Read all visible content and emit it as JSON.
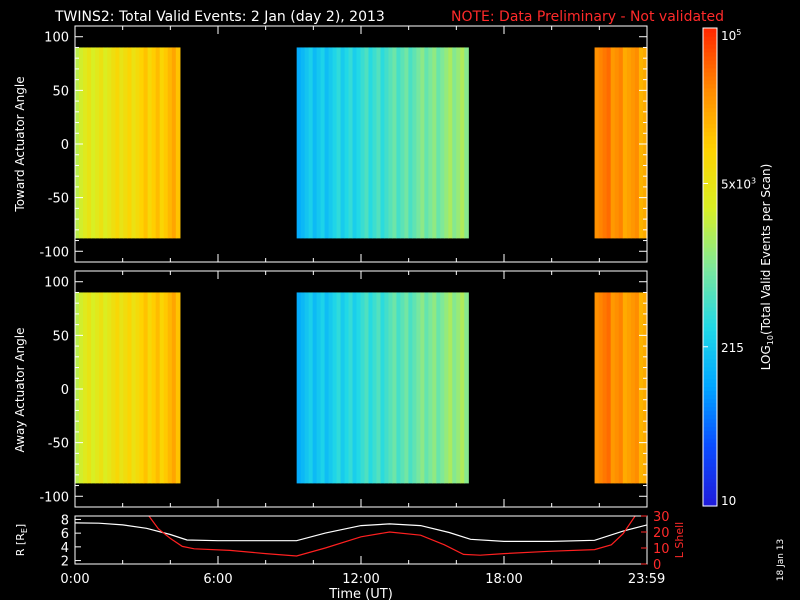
{
  "title": "TWINS2: Total Valid Events:  2 Jan (day   2), 2013",
  "note": "NOTE: Data Preliminary - Not validated",
  "footer_date": "18 Jan 13",
  "colorbar": {
    "label": "LOG10(Total Valid Events per Scan)",
    "label_prefix": "LOG",
    "label_sub": "10",
    "label_suffix": "(Total Valid Events per Scan)",
    "ticks": [
      {
        "value": 10,
        "text": "10",
        "base": "10",
        "exp": ""
      },
      {
        "value": 215,
        "text": "215",
        "base": "215",
        "exp": ""
      },
      {
        "value": 5000,
        "text": "5x10^3",
        "base": "5x10",
        "exp": "3"
      },
      {
        "value": 100000,
        "text": "10^5",
        "base": "10",
        "exp": "5"
      }
    ],
    "range": [
      10,
      100000
    ],
    "scale": "log",
    "colors": [
      "#1f1cdc",
      "#0a4dff",
      "#00a6ff",
      "#21d9e6",
      "#7ee89a",
      "#d8ef24",
      "#ffd200",
      "#ff8a00",
      "#ff2a00"
    ]
  },
  "chart_data": [
    {
      "type": "heatmap",
      "panel": "toward",
      "ylabel": "Toward Actuator Angle",
      "ylim": [
        -110,
        110
      ],
      "yticks": [
        -100,
        -50,
        0,
        50,
        100
      ],
      "xlim": [
        0,
        24
      ],
      "angle_range": [
        -88,
        90
      ],
      "segments": [
        {
          "x_start": 0.0,
          "x_end": 4.4,
          "level_start": 0.62,
          "level_end": 0.8
        },
        {
          "x_start": 9.3,
          "x_end": 16.5,
          "level_start": 0.3,
          "level_end": 0.55
        },
        {
          "x_start": 21.8,
          "x_end": 24.0,
          "level_start": 0.9,
          "level_end": 0.82
        }
      ]
    },
    {
      "type": "heatmap",
      "panel": "away",
      "ylabel": "Away Actuator Angle",
      "ylim": [
        -110,
        110
      ],
      "yticks": [
        -100,
        -50,
        0,
        50,
        100
      ],
      "xlim": [
        0,
        24
      ],
      "angle_range": [
        -88,
        90
      ],
      "segments": [
        {
          "x_start": 0.0,
          "x_end": 4.4,
          "level_start": 0.62,
          "level_end": 0.8
        },
        {
          "x_start": 9.3,
          "x_end": 16.5,
          "level_start": 0.3,
          "level_end": 0.55
        },
        {
          "x_start": 21.8,
          "x_end": 24.0,
          "level_start": 0.9,
          "level_end": 0.82
        }
      ]
    },
    {
      "type": "line",
      "panel": "orbit",
      "ylabel_left": "R [RE]",
      "ylabel_left_main": "R [R",
      "ylabel_left_sub": "E",
      "ylabel_left_end": "]",
      "ylabel_right": "L Shell",
      "xlabel": "Time (UT)",
      "xticks": [
        0,
        6,
        12,
        18,
        23.983
      ],
      "xtick_labels": [
        "0:00",
        "6:00",
        "12:00",
        "18:00",
        "23:59"
      ],
      "xlim": [
        0,
        24
      ],
      "ylim_left": [
        1.5,
        8.5
      ],
      "yticks_left": [
        2,
        4,
        6,
        8
      ],
      "ylim_right": [
        0,
        30
      ],
      "yticks_right": [
        0,
        10,
        20,
        30
      ],
      "series": [
        {
          "axis": "left",
          "color": "#ffffff",
          "x": [
            0,
            1,
            2,
            3,
            4,
            4.7,
            6,
            8,
            9.3,
            10.5,
            12,
            13.2,
            14.5,
            15.7,
            16.6,
            18,
            20,
            21.8,
            23,
            24
          ],
          "y": [
            7.5,
            7.45,
            7.2,
            6.7,
            5.8,
            5.0,
            4.9,
            4.9,
            4.9,
            6.0,
            7.1,
            7.35,
            7.1,
            6.1,
            5.1,
            4.8,
            4.8,
            4.95,
            6.3,
            7.2
          ]
        },
        {
          "axis": "right",
          "color": "#ff2020",
          "x": [
            3.1,
            3.5,
            4.0,
            4.5,
            5.0,
            6.5,
            8.0,
            9.3,
            10.5,
            12.0,
            13.2,
            14.5,
            15.5,
            16.3,
            17.0,
            18.0,
            20.0,
            21.8,
            22.5,
            23.0,
            23.5
          ],
          "y": [
            30,
            22,
            16,
            11,
            9.5,
            8.5,
            6.5,
            5.0,
            10,
            17,
            20,
            18,
            12,
            6,
            5.5,
            6.5,
            8.0,
            9.0,
            12,
            19,
            30
          ]
        }
      ]
    }
  ]
}
